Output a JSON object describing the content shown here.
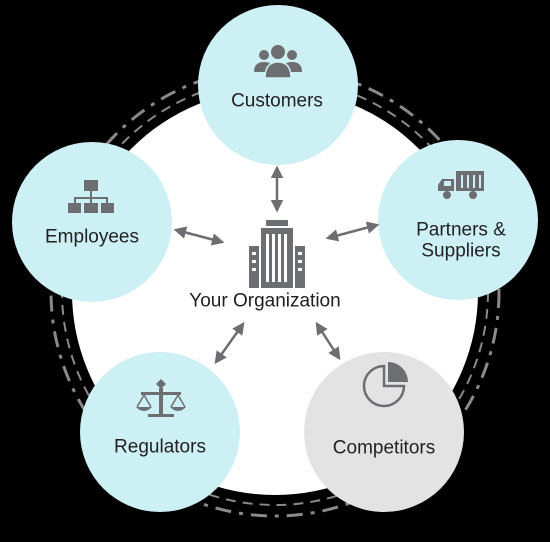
{
  "center": {
    "label": "Your Organization",
    "icon": "building-icon"
  },
  "stakeholders": [
    {
      "id": "customers",
      "label": "Customers",
      "icon": "people-group-icon",
      "fill": "#cdf0f5"
    },
    {
      "id": "partners",
      "label_line1": "Partners &",
      "label_line2": "Suppliers",
      "icon": "delivery-truck-icon",
      "fill": "#cdf0f5"
    },
    {
      "id": "competitors",
      "label": "Competitors",
      "icon": "pie-chart-icon",
      "fill": "#e3e3e3"
    },
    {
      "id": "regulators",
      "label": "Regulators",
      "icon": "scales-icon",
      "fill": "#cdf0f5"
    },
    {
      "id": "employees",
      "label": "Employees",
      "icon": "org-chart-icon",
      "fill": "#cdf0f5"
    }
  ],
  "colors": {
    "background": "#000000",
    "hub": "#ffffff",
    "node_fill": "#cdf0f5",
    "competitor_fill": "#e3e3e3",
    "icon": "#6d6e71",
    "arrow": "#6d6e71",
    "dashed_ring": "#8a8a8a"
  }
}
